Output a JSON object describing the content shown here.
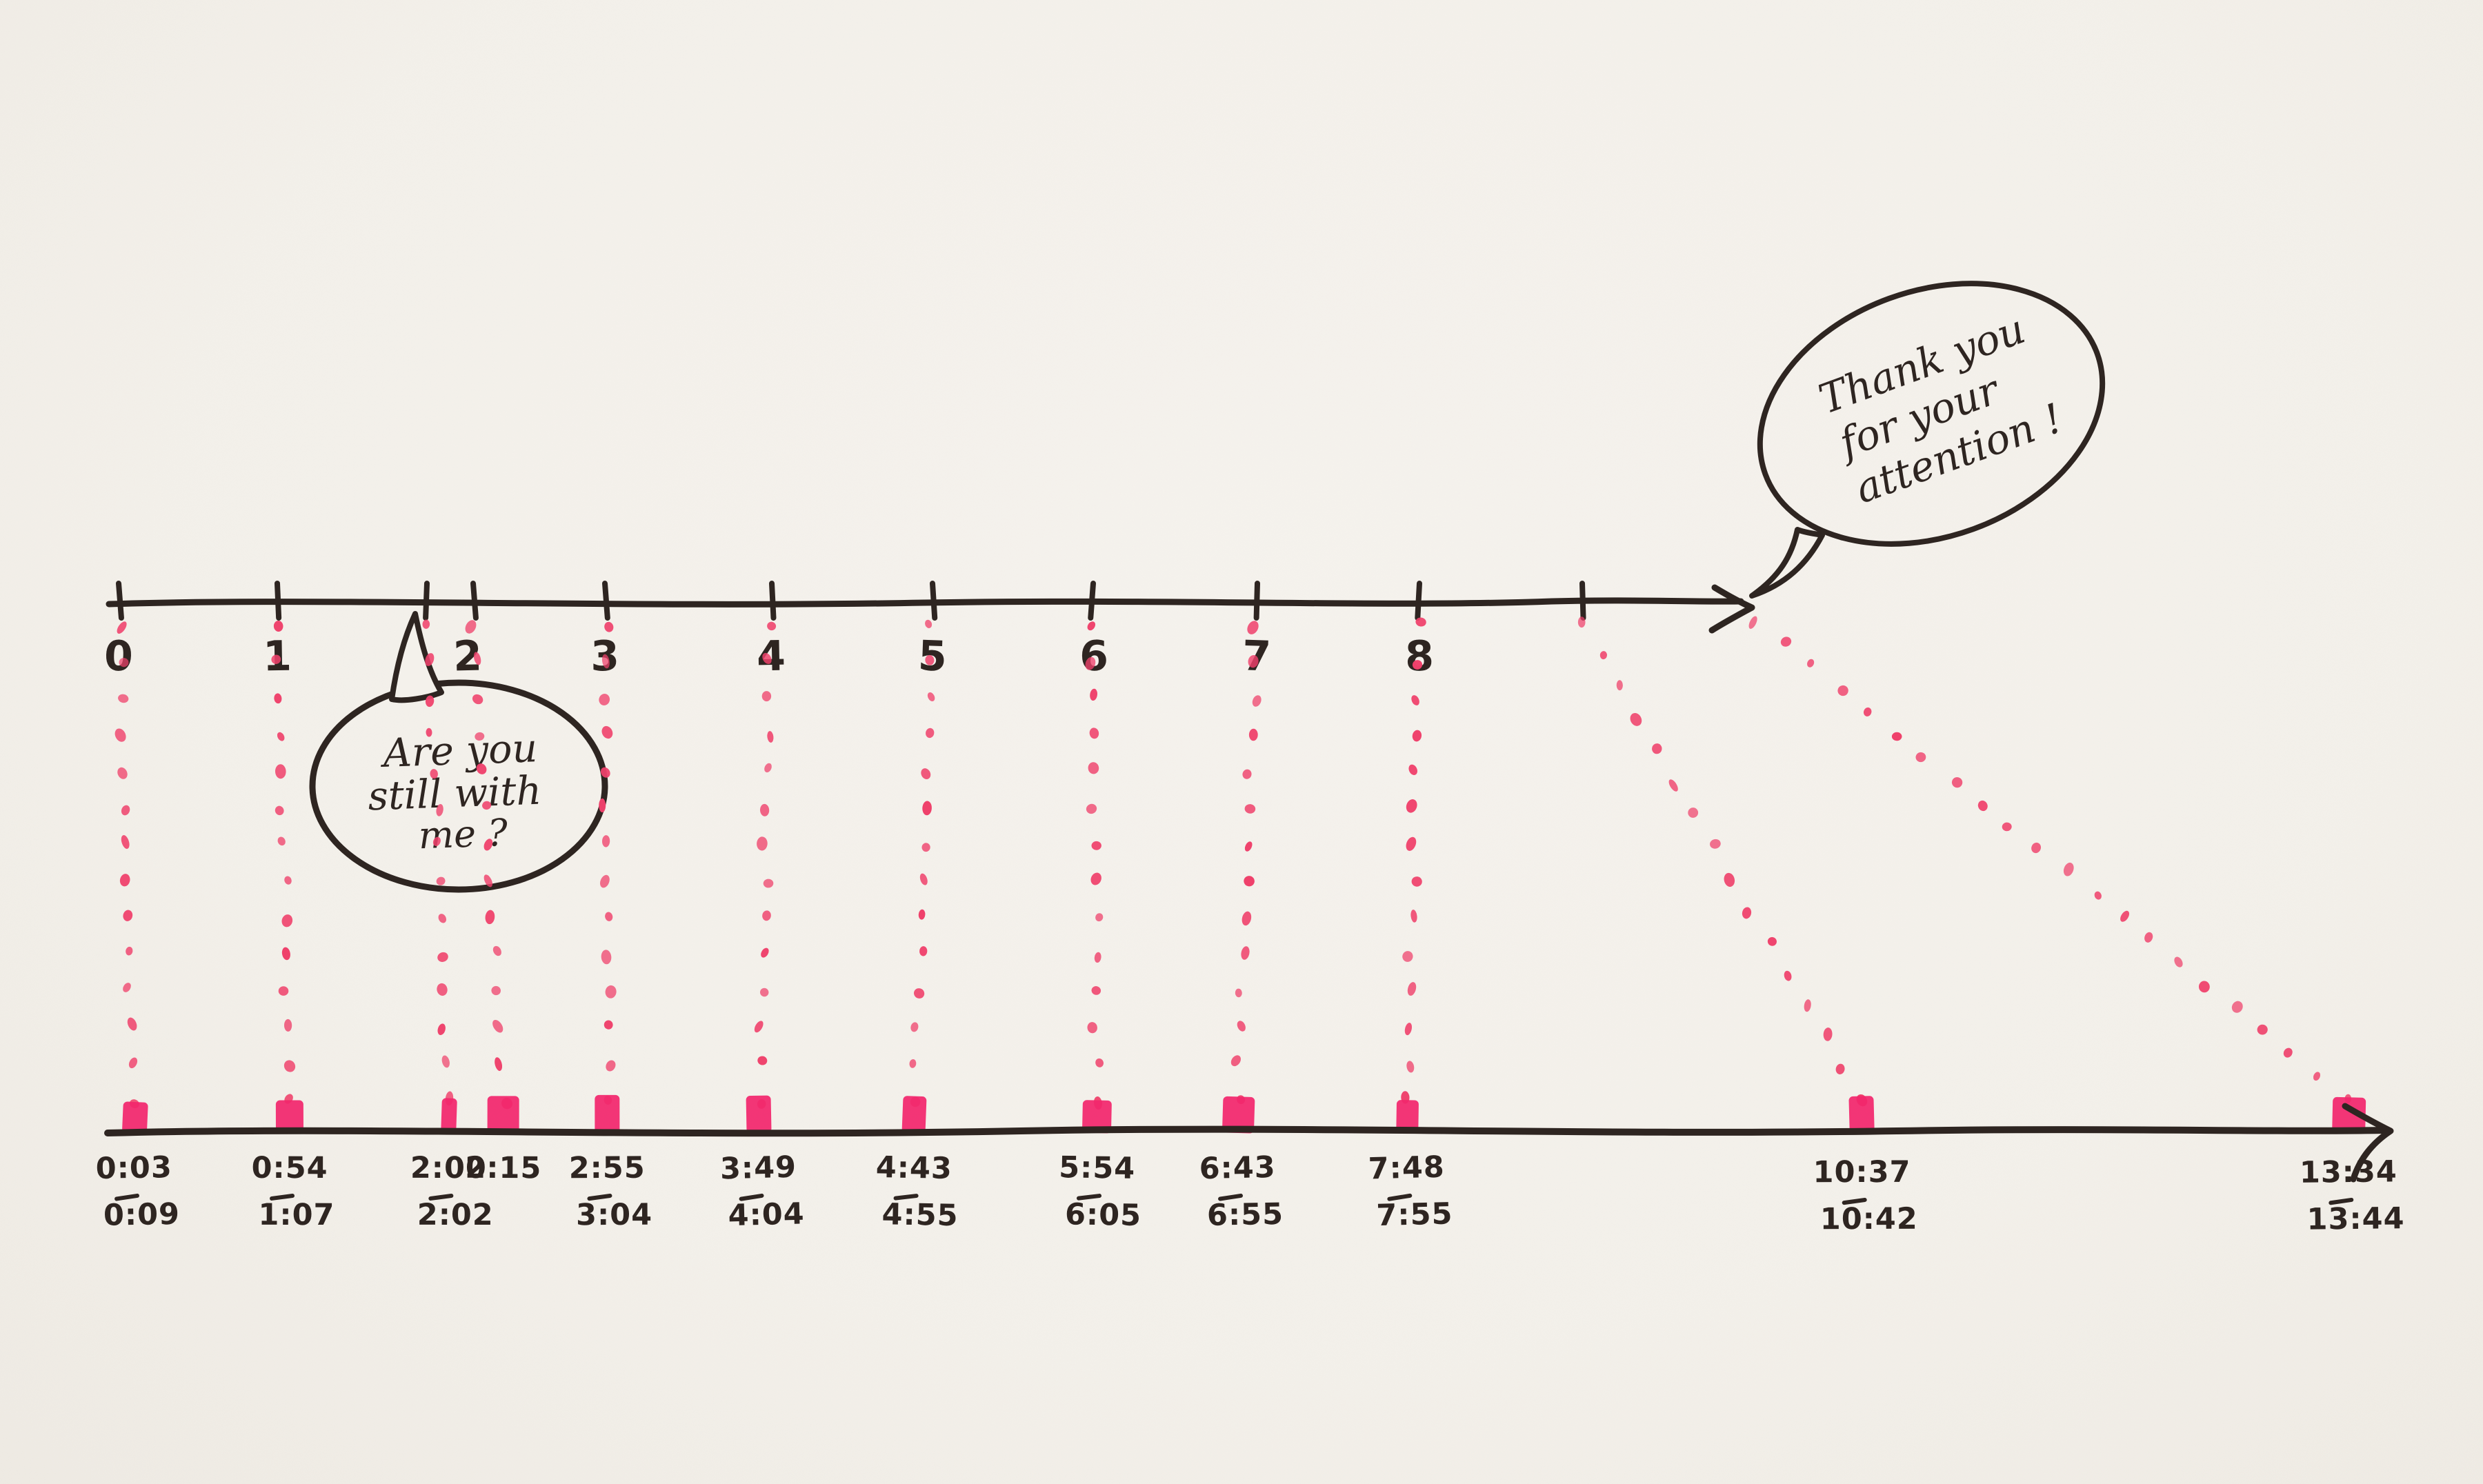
{
  "colors": {
    "paper": "#f4f1eb",
    "ink": "#2e2521",
    "dot_pink": "#ef416b",
    "marker_pink": "#f2276d"
  },
  "chart_data": {
    "type": "timeline",
    "description": "Hand-drawn sketch mapping presentation slide numbers (top arrow axis, ticks 0-8 plus two unlabeled ticks) to the timestamps when each slide appeared (bottom arrow axis). Pink dotted lines connect each slide tick to a pink highlighter mark on the time axis; each mark is annotated with a start and end time.",
    "top_axis": {
      "tick_labels": [
        "0",
        "1",
        "2",
        "3",
        "4",
        "5",
        "6",
        "7",
        "8"
      ],
      "extra_ticks": [
        "unlabeled tick just after 2 (the 2:15 moment)",
        "unlabeled tick after 8"
      ]
    },
    "bottom_axis": {
      "label_type": "timestamps mm:ss, start time over a dash over end time"
    },
    "events": [
      {
        "slide": "0",
        "start": "0:03",
        "end": "0:09"
      },
      {
        "slide": "1",
        "start": "0:54",
        "end": "1:07"
      },
      {
        "slide": "2",
        "start": "2:00",
        "end": "2:02"
      },
      {
        "slide": "",
        "start": "2:15",
        "end": ""
      },
      {
        "slide": "3",
        "start": "2:55",
        "end": "3:04"
      },
      {
        "slide": "4",
        "start": "3:49",
        "end": "4:04"
      },
      {
        "slide": "5",
        "start": "4:43",
        "end": "4:55"
      },
      {
        "slide": "6",
        "start": "5:54",
        "end": "6:05"
      },
      {
        "slide": "7",
        "start": "6:43",
        "end": "6:55"
      },
      {
        "slide": "8",
        "start": "7:48",
        "end": "7:55"
      },
      {
        "slide": "",
        "start": "10:37",
        "end": "10:42"
      },
      {
        "slide": "",
        "start": "13:34",
        "end": "13:44"
      }
    ]
  },
  "annotations": {
    "bubble1": {
      "line1": "Are you",
      "line2": "still with",
      "line3": "me ?"
    },
    "bubble2": {
      "line1": "Thank you",
      "line2": "for your",
      "line3": "attention !"
    }
  }
}
